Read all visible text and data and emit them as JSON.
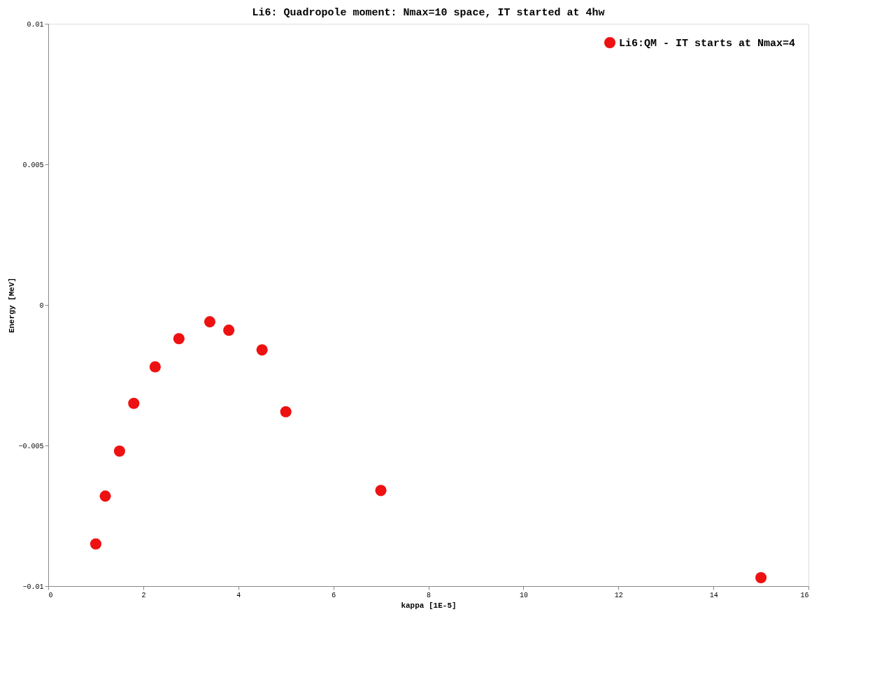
{
  "chart_data": {
    "type": "scatter",
    "title": "Li6: Quadropole moment: Nmax=10 space, IT started at 4hw",
    "xlabel": "kappa [1E-5]",
    "ylabel": "Energy [MeV]",
    "x": [
      1.0,
      1.2,
      1.5,
      1.8,
      2.25,
      2.75,
      3.4,
      3.8,
      4.5,
      5.0,
      7.0,
      15.0
    ],
    "series": [
      {
        "name": "Li6:QM - IT starts at Nmax=4",
        "color": "#ee1111",
        "values": [
          -0.0085,
          -0.0068,
          -0.0052,
          -0.0035,
          -0.0022,
          -0.0012,
          -0.0006,
          -0.0009,
          -0.0016,
          -0.0038,
          -0.0066,
          -0.0097
        ]
      }
    ],
    "xlim": [
      0,
      16
    ],
    "xticks": [
      0,
      2,
      4,
      6,
      8,
      10,
      12,
      14,
      16
    ],
    "ylim": [
      -0.01,
      0.01
    ],
    "yticks": [
      -0.01,
      -0.005,
      0,
      0.005,
      0.01
    ],
    "grid": false,
    "legend": "top right",
    "marker": "circle"
  }
}
